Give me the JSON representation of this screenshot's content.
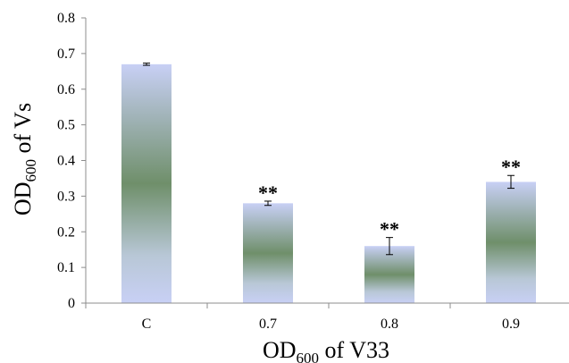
{
  "chart_data": {
    "type": "bar",
    "categories": [
      "C",
      "0.7",
      "0.8",
      "0.9"
    ],
    "values": [
      0.67,
      0.28,
      0.16,
      0.34
    ],
    "errors": [
      0.003,
      0.006,
      0.024,
      0.018
    ],
    "significance": [
      "",
      "**",
      "**",
      "**"
    ],
    "ylim": [
      0,
      0.8
    ],
    "yticks": [
      "0",
      "0.1",
      "0.2",
      "0.3",
      "0.4",
      "0.5",
      "0.6",
      "0.7",
      "0.8"
    ],
    "ylabel": {
      "main": "OD",
      "sub": "600",
      "rest": " of Vs"
    },
    "xlabel": {
      "main": "OD",
      "sub": "600",
      "rest": " of V33"
    },
    "colors": {
      "bar_edge": "#c8d0f5",
      "bar_center": "#6f8f6a",
      "axis": "#8c8c8c"
    }
  }
}
